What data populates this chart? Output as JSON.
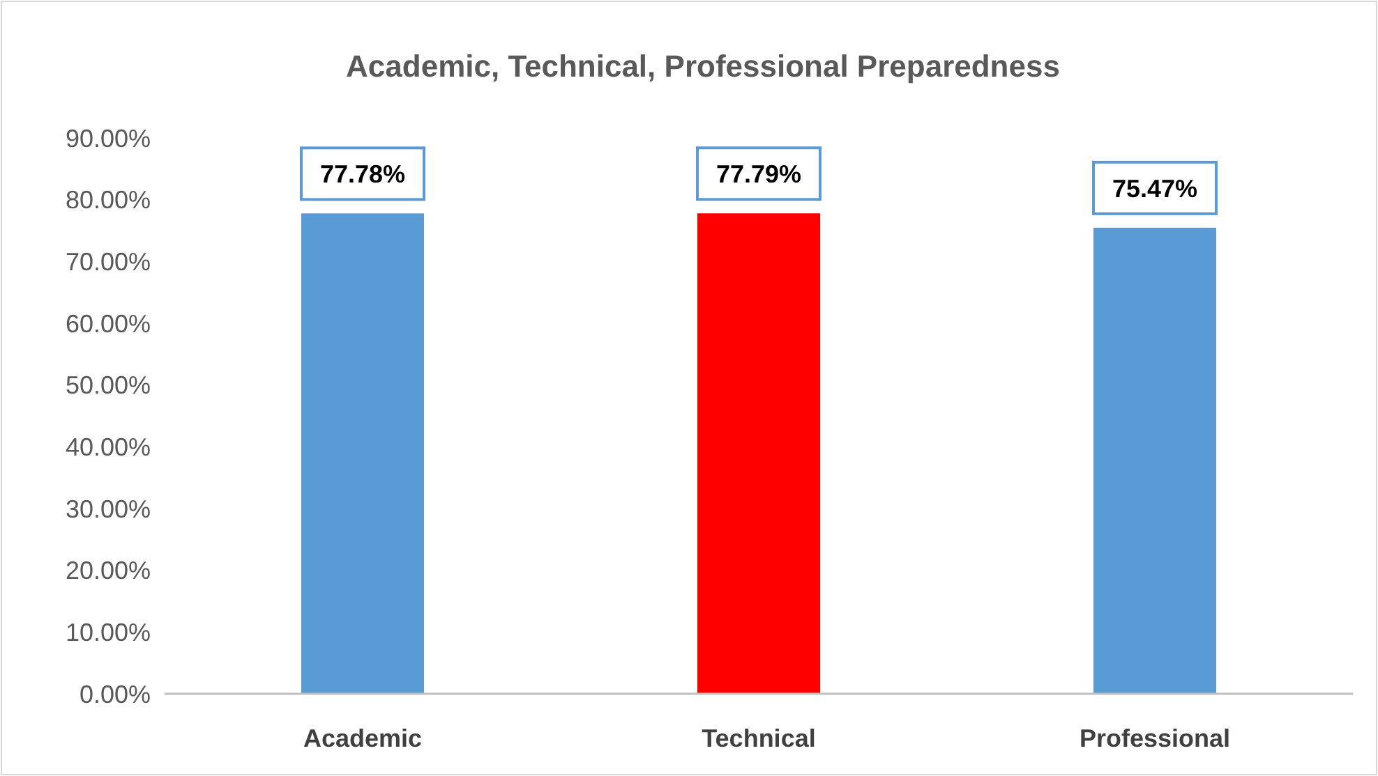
{
  "chart_data": {
    "type": "bar",
    "title": "Academic, Technical, Professional Preparedness",
    "categories": [
      "Academic",
      "Technical",
      "Professional"
    ],
    "values": [
      77.78,
      77.79,
      75.47
    ],
    "colors": [
      "#5b9bd5",
      "#ff0000",
      "#5b9bd5"
    ],
    "value_labels": [
      "77.78%",
      "77.79%",
      "75.47%"
    ],
    "ylim": [
      0,
      90
    ],
    "yticks": [
      {
        "value": 0,
        "label": "0.00%"
      },
      {
        "value": 10,
        "label": "10.00%"
      },
      {
        "value": 20,
        "label": "20.00%"
      },
      {
        "value": 30,
        "label": "30.00%"
      },
      {
        "value": 40,
        "label": "40.00%"
      },
      {
        "value": 50,
        "label": "50.00%"
      },
      {
        "value": 60,
        "label": "60.00%"
      },
      {
        "value": 70,
        "label": "70.00%"
      },
      {
        "value": 80,
        "label": "80.00%"
      },
      {
        "value": 90,
        "label": "90.00%"
      }
    ],
    "grid": false
  }
}
